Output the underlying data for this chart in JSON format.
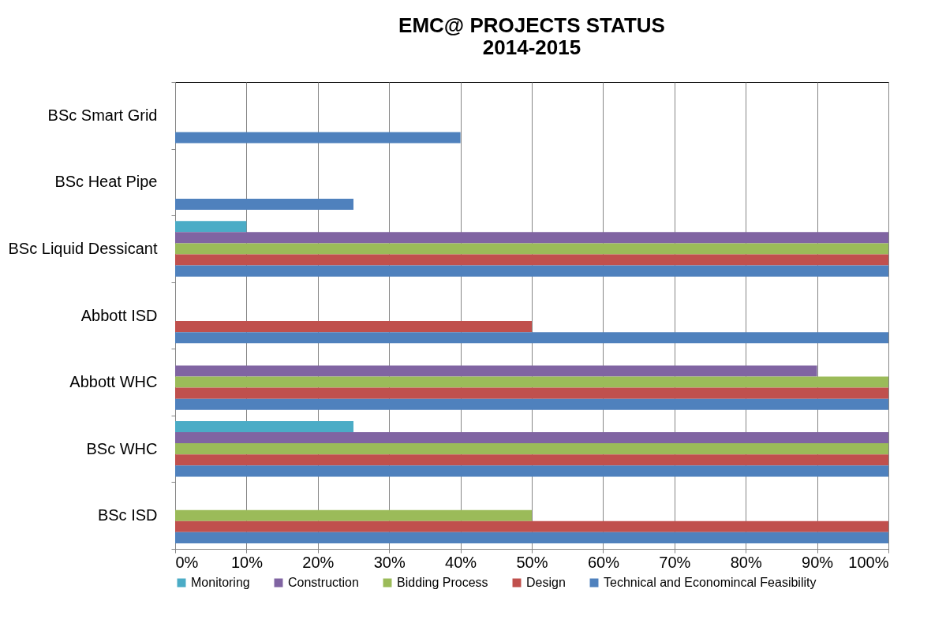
{
  "chart_data": {
    "type": "bar",
    "orientation": "horizontal",
    "title": "EMC@ PROJECTS STATUS\n2014-2015",
    "categories": [
      "BSc Smart Grid",
      "BSc Heat Pipe",
      "BSc Liquid Dessicant",
      "Abbott ISD",
      "Abbott WHC",
      "BSc  WHC",
      "BSc ISD"
    ],
    "series": [
      {
        "name": "Monitoring",
        "color": "#4bacc6",
        "values": [
          null,
          null,
          10,
          null,
          null,
          25,
          null
        ]
      },
      {
        "name": "Construction",
        "color": "#8064a2",
        "values": [
          null,
          null,
          100,
          null,
          90,
          100,
          null
        ]
      },
      {
        "name": "Bidding Process",
        "color": "#9bbb59",
        "values": [
          null,
          null,
          100,
          null,
          100,
          100,
          50
        ]
      },
      {
        "name": "Design",
        "color": "#c0504d",
        "values": [
          null,
          null,
          100,
          50,
          100,
          100,
          100
        ]
      },
      {
        "name": "Technical and Economincal Feasibility",
        "color": "#4f81bd",
        "values": [
          40,
          25,
          100,
          100,
          100,
          100,
          100
        ]
      }
    ],
    "xlim": [
      0,
      100
    ],
    "xticks": [
      {
        "value": 0,
        "label": "0%"
      },
      {
        "value": 10,
        "label": "10%"
      },
      {
        "value": 20,
        "label": "20%"
      },
      {
        "value": 30,
        "label": "30%"
      },
      {
        "value": 40,
        "label": "40%"
      },
      {
        "value": 50,
        "label": "50%"
      },
      {
        "value": 60,
        "label": "60%"
      },
      {
        "value": 70,
        "label": "70%"
      },
      {
        "value": 80,
        "label": "80%"
      },
      {
        "value": 90,
        "label": "90%"
      },
      {
        "value": 100,
        "label": "100%"
      }
    ],
    "grid": "x",
    "legend": "bottom"
  }
}
